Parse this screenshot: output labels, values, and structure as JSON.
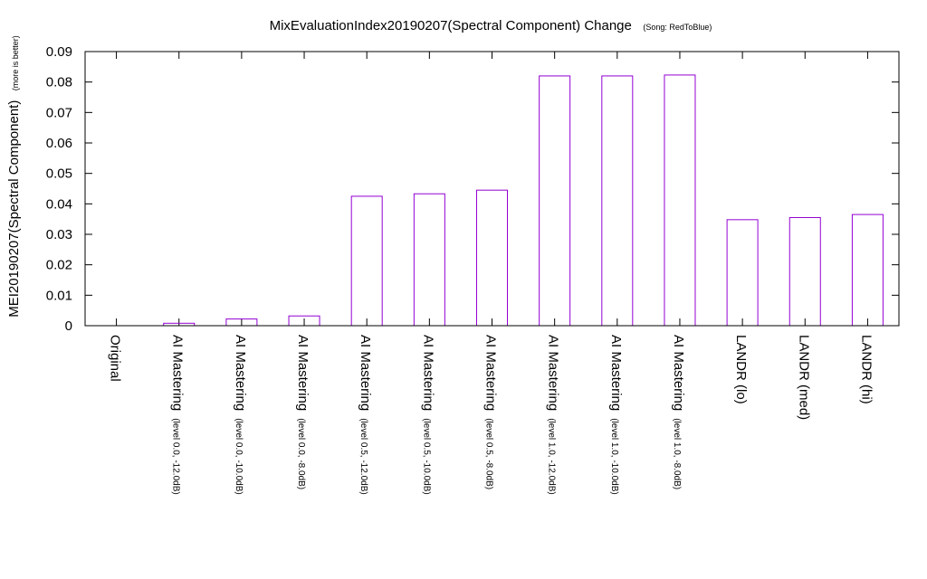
{
  "chart_data": {
    "type": "bar",
    "title": "MixEvaluationIndex20190207(Spectral Component) Change",
    "subtitle": "(Song: RedToBlue)",
    "ylabel": "MEI20190207(Spectral Component)",
    "ylabel_note": "(more is better)",
    "xlabel": "",
    "ylim": [
      0,
      0.09
    ],
    "yticks": [
      "0",
      "0.01",
      "0.02",
      "0.03",
      "0.04",
      "0.05",
      "0.06",
      "0.07",
      "0.08",
      "0.09"
    ],
    "bar_color": "#9400d3",
    "categories": [
      {
        "label": "Original",
        "sub": ""
      },
      {
        "label": "AI Mastering",
        "sub": "(level 0.0, -12.0dB)"
      },
      {
        "label": "AI Mastering",
        "sub": "(level 0.0, -10.0dB)"
      },
      {
        "label": "AI Mastering",
        "sub": "(level 0.0, -8.0dB)"
      },
      {
        "label": "AI Mastering",
        "sub": "(level 0.5, -12.0dB)"
      },
      {
        "label": "AI Mastering",
        "sub": "(level 0.5, -10.0dB)"
      },
      {
        "label": "AI Mastering",
        "sub": "(level 0.5, -8.0dB)"
      },
      {
        "label": "AI Mastering",
        "sub": "(level 1.0, -12.0dB)"
      },
      {
        "label": "AI Mastering",
        "sub": "(level 1.0, -10.0dB)"
      },
      {
        "label": "AI Mastering",
        "sub": "(level 1.0, -8.0dB)"
      },
      {
        "label": "LANDR (lo)",
        "sub": ""
      },
      {
        "label": "LANDR (med)",
        "sub": ""
      },
      {
        "label": "LANDR (hi)",
        "sub": ""
      }
    ],
    "values": [
      0,
      0.0008,
      0.0022,
      0.0032,
      0.0425,
      0.0433,
      0.0445,
      0.082,
      0.082,
      0.0823,
      0.0348,
      0.0355,
      0.0365
    ]
  }
}
